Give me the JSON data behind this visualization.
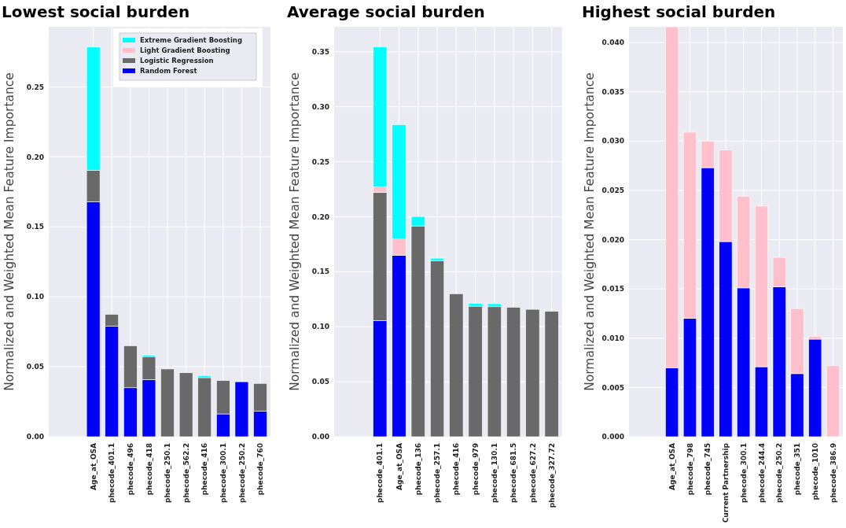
{
  "chart_data": [
    {
      "type": "bar",
      "title": "Lowest social burden",
      "ylabel": "Normalized and Weighted Mean Feature Importance",
      "stacked": true,
      "grid": true,
      "legend": "top right",
      "categories": [
        "Age_at_OSA",
        "phecode_401.1",
        "phecode_496",
        "phecode_418",
        "phecode_250.1",
        "phecode_562.2",
        "phecode_416",
        "phecode_300.1",
        "phecode_250.2",
        "phecode_760"
      ],
      "series": [
        {
          "name": "Random Forest",
          "color": "#0000ff",
          "values": [
            0.168,
            0.0791,
            0.035,
            0.0408,
            null,
            null,
            null,
            0.0163,
            0.0393,
            0.0183
          ]
        },
        {
          "name": "Logistic Regression",
          "color": "#696969",
          "values": [
            0.0225,
            0.0084,
            0.03,
            0.0164,
            0.0484,
            0.0457,
            0.0422,
            0.0239,
            null,
            0.0198
          ]
        },
        {
          "name": "Light Gradient Boosting",
          "color": "#ffc0cb",
          "values": [
            null,
            null,
            null,
            null,
            null,
            null,
            null,
            null,
            null,
            null
          ]
        },
        {
          "name": "Extreme Gradient Boosting",
          "color": "#00ffff",
          "values": [
            0.088,
            null,
            null,
            0.001,
            null,
            null,
            0.0015,
            null,
            null,
            null
          ]
        }
      ],
      "ylim": [
        0,
        0.293
      ],
      "yticks": [
        {
          "value": 0,
          "label": "0.00"
        },
        {
          "value": 0.05,
          "label": "0.05"
        },
        {
          "value": 0.1,
          "label": "0.10"
        },
        {
          "value": 0.15,
          "label": "0.15"
        },
        {
          "value": 0.2,
          "label": "0.20"
        },
        {
          "value": 0.25,
          "label": "0.25"
        }
      ]
    },
    {
      "type": "bar",
      "title": "Average social burden",
      "ylabel": "Normalized and Weighted Mean Feature Importance",
      "stacked": true,
      "grid": true,
      "categories": [
        "phecode_401.1",
        "Age_at_OSA",
        "phecode_136",
        "phecode_257.1",
        "phecode_416",
        "phecode_979",
        "phecode_130.1",
        "phecode_681.5",
        "phecode_627.2",
        "phecode_327.72"
      ],
      "series": [
        {
          "color": "#0000ff",
          "values": [
            0.1054,
            0.165,
            null,
            null,
            null,
            null,
            null,
            null,
            null,
            null
          ]
        },
        {
          "color": "#696969",
          "values": [
            0.1168,
            null,
            0.1916,
            0.1601,
            0.13,
            0.1187,
            0.1182,
            0.1177,
            0.1158,
            0.114
          ]
        },
        {
          "color": "#ffc0cb",
          "values": [
            0.0051,
            0.0148,
            null,
            null,
            null,
            null,
            null,
            null,
            null,
            null
          ]
        },
        {
          "color": "#00ffff",
          "values": [
            0.1271,
            0.1039,
            0.0086,
            0.0022,
            null,
            0.0025,
            0.0027,
            null,
            null,
            null
          ]
        }
      ],
      "ylim": [
        0,
        0.3727
      ],
      "yticks": [
        {
          "value": 0,
          "label": "0.00"
        },
        {
          "value": 0.05,
          "label": "0.05"
        },
        {
          "value": 0.1,
          "label": "0.10"
        },
        {
          "value": 0.15,
          "label": "0.15"
        },
        {
          "value": 0.2,
          "label": "0.20"
        },
        {
          "value": 0.25,
          "label": "0.25"
        },
        {
          "value": 0.3,
          "label": "0.30"
        },
        {
          "value": 0.35,
          "label": "0.35"
        }
      ]
    },
    {
      "type": "bar",
      "title": "Highest social burden",
      "ylabel": "Normalized and Weighted Mean Feature Importance",
      "stacked": true,
      "grid": true,
      "categories": [
        "Age_at_OSA",
        "phecode_798",
        "phecode_745",
        "Current Partnership",
        "phecode_300.1",
        "phecode_244.4",
        "phecode_250.2",
        "phecode_351",
        "phecode_1010",
        "phecode_386.9"
      ],
      "series": [
        {
          "color": "#0000ff",
          "values": [
            0.007,
            0.012,
            0.0273,
            0.0198,
            0.0151,
            0.0071,
            0.0152,
            0.0064,
            0.0099,
            null
          ]
        },
        {
          "color": "#ffc0cb",
          "values": [
            0.0346,
            0.0189,
            0.0027,
            0.0093,
            0.0093,
            0.0163,
            0.003,
            0.0066,
            0.0003,
            0.0072
          ]
        }
      ],
      "ylim": [
        0,
        0.0416
      ],
      "yticks": [
        {
          "value": 0,
          "label": "0.000"
        },
        {
          "value": 0.005,
          "label": "0.005"
        },
        {
          "value": 0.01,
          "label": "0.010"
        },
        {
          "value": 0.015,
          "label": "0.015"
        },
        {
          "value": 0.02,
          "label": "0.020"
        },
        {
          "value": 0.025,
          "label": "0.025"
        },
        {
          "value": 0.03,
          "label": "0.030"
        },
        {
          "value": 0.035,
          "label": "0.035"
        },
        {
          "value": 0.04,
          "label": "0.040"
        }
      ]
    }
  ]
}
